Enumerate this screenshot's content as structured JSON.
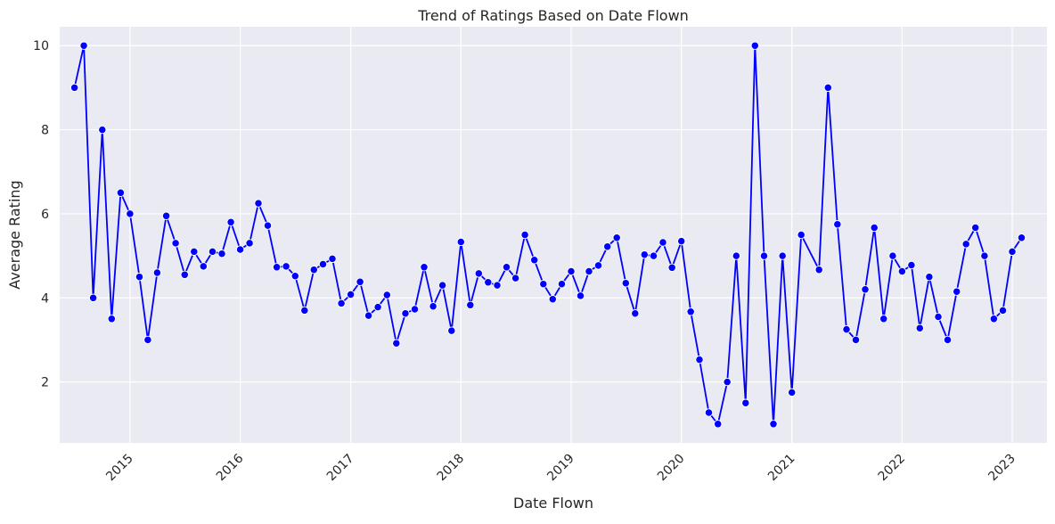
{
  "chart_data": {
    "type": "line",
    "title": "Trend of Ratings Based on Date Flown",
    "xlabel": "Date Flown",
    "ylabel": "Average Rating",
    "x_ticks": [
      "2015",
      "2016",
      "2017",
      "2018",
      "2019",
      "2020",
      "2021",
      "2022",
      "2023"
    ],
    "y_ticks": [
      "2",
      "4",
      "6",
      "8",
      "10"
    ],
    "xlim": [
      "2014-05-13",
      "2023-04-26"
    ],
    "ylim": [
      0.55,
      10.45
    ],
    "grid": true,
    "legend": "none",
    "colors": {
      "line": "#0000ff",
      "marker": "#0000ff",
      "background": "#eaeaf2",
      "grid": "#ffffff"
    },
    "series": [
      {
        "x": [
          "2014-07-01",
          "2014-08-01",
          "2014-09-01",
          "2014-10-01",
          "2014-11-01",
          "2014-12-01",
          "2015-01-01",
          "2015-02-01",
          "2015-03-01",
          "2015-04-01",
          "2015-05-01",
          "2015-06-01",
          "2015-07-01",
          "2015-08-01",
          "2015-09-01",
          "2015-10-01",
          "2015-11-01",
          "2015-12-01",
          "2016-01-01",
          "2016-02-01",
          "2016-03-01",
          "2016-04-01",
          "2016-05-01",
          "2016-06-01",
          "2016-07-01",
          "2016-08-01",
          "2016-09-01",
          "2016-10-01",
          "2016-11-01",
          "2016-12-01",
          "2017-01-01",
          "2017-02-01",
          "2017-03-01",
          "2017-04-01",
          "2017-05-01",
          "2017-06-01",
          "2017-07-01",
          "2017-08-01",
          "2017-09-01",
          "2017-10-01",
          "2017-11-01",
          "2017-12-01",
          "2018-01-01",
          "2018-02-01",
          "2018-03-01",
          "2018-04-01",
          "2018-05-01",
          "2018-06-01",
          "2018-07-01",
          "2018-08-01",
          "2018-09-01",
          "2018-10-01",
          "2018-11-01",
          "2018-12-01",
          "2019-01-01",
          "2019-02-01",
          "2019-03-01",
          "2019-04-01",
          "2019-05-01",
          "2019-06-01",
          "2019-07-01",
          "2019-08-01",
          "2019-09-01",
          "2019-10-01",
          "2019-11-01",
          "2019-12-01",
          "2020-01-01",
          "2020-02-01",
          "2020-03-01",
          "2020-04-01",
          "2020-05-01",
          "2020-06-01",
          "2020-07-01",
          "2020-08-01",
          "2020-09-01",
          "2020-10-01",
          "2020-11-01",
          "2020-12-01",
          "2021-01-01",
          "2021-02-01",
          "2021-04-01",
          "2021-05-01",
          "2021-06-01",
          "2021-07-01",
          "2021-08-01",
          "2021-09-01",
          "2021-10-01",
          "2021-11-01",
          "2021-12-01",
          "2022-01-01",
          "2022-02-01",
          "2022-03-01",
          "2022-04-01",
          "2022-05-01",
          "2022-06-01",
          "2022-07-01",
          "2022-08-01",
          "2022-09-01",
          "2022-10-01",
          "2022-11-01",
          "2022-12-01",
          "2023-01-01",
          "2023-02-01"
        ],
        "values": [
          9.0,
          10.0,
          4.0,
          8.0,
          3.5,
          6.5,
          6.0,
          4.5,
          3.0,
          4.6,
          5.95,
          5.3,
          4.55,
          5.1,
          4.75,
          5.1,
          5.05,
          5.8,
          5.15,
          5.3,
          6.25,
          5.72,
          4.73,
          4.75,
          4.52,
          3.7,
          4.67,
          4.8,
          4.93,
          3.87,
          4.08,
          4.38,
          3.58,
          3.78,
          4.07,
          2.92,
          3.63,
          3.73,
          4.73,
          3.8,
          4.3,
          3.22,
          5.33,
          3.83,
          4.58,
          4.37,
          4.3,
          4.73,
          4.47,
          5.5,
          4.9,
          4.33,
          3.97,
          4.33,
          4.63,
          4.05,
          4.63,
          4.77,
          5.22,
          5.43,
          4.35,
          3.63,
          5.03,
          5.0,
          5.32,
          4.72,
          5.35,
          3.67,
          2.53,
          1.27,
          1.0,
          2.0,
          5.0,
          1.5,
          10.0,
          5.0,
          1.0,
          5.0,
          1.75,
          5.5,
          4.67,
          9.0,
          5.75,
          3.25,
          3.0,
          4.2,
          5.67,
          3.5,
          5.0,
          4.63,
          4.78,
          3.28,
          4.5,
          3.55,
          3.0,
          4.15,
          5.28,
          5.67,
          5.0,
          3.5,
          3.7,
          5.1,
          5.43
        ]
      }
    ]
  }
}
